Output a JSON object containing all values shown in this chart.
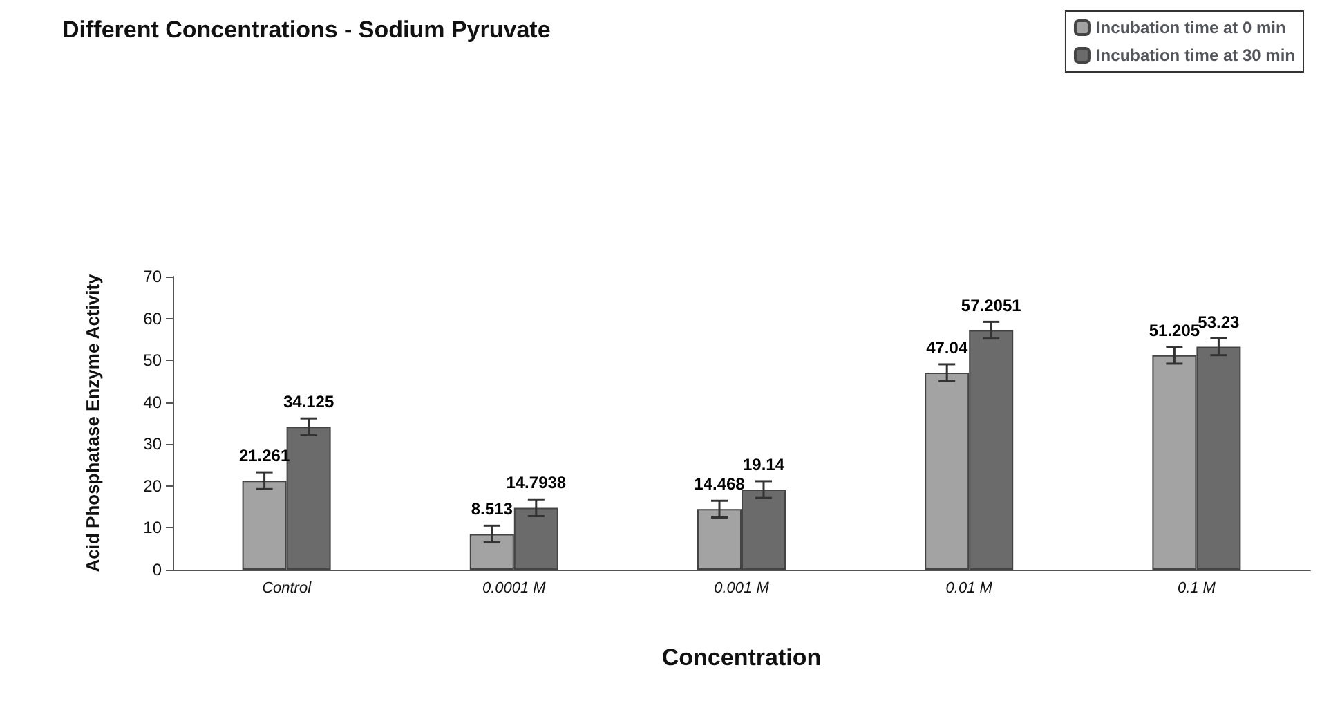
{
  "chart_data": {
    "type": "bar",
    "title": "Different Concentrations - Sodium Pyruvate",
    "xlabel": "Concentration",
    "ylabel": "Acid Phosphatase Enzyme Activity",
    "categories": [
      "Control",
      "0.0001 M",
      "0.001 M",
      "0.01 M",
      "0.1 M"
    ],
    "series": [
      {
        "name": "Incubation time at 0 min",
        "color": "#a3a3a3",
        "values": [
          21.261,
          8.513,
          14.468,
          47.04,
          51.205
        ],
        "errors": [
          2,
          2,
          2,
          2,
          2
        ]
      },
      {
        "name": "Incubation time at 30 min",
        "color": "#6b6b6b",
        "values": [
          34.125,
          14.7938,
          19.14,
          57.2051,
          53.23
        ],
        "errors": [
          2,
          2,
          2,
          2,
          2
        ]
      }
    ],
    "ylim": [
      0,
      70
    ],
    "yticks": [
      0,
      10,
      20,
      30,
      40,
      50,
      60,
      70
    ],
    "grid": false,
    "legend": "top right",
    "data_labels": true
  }
}
